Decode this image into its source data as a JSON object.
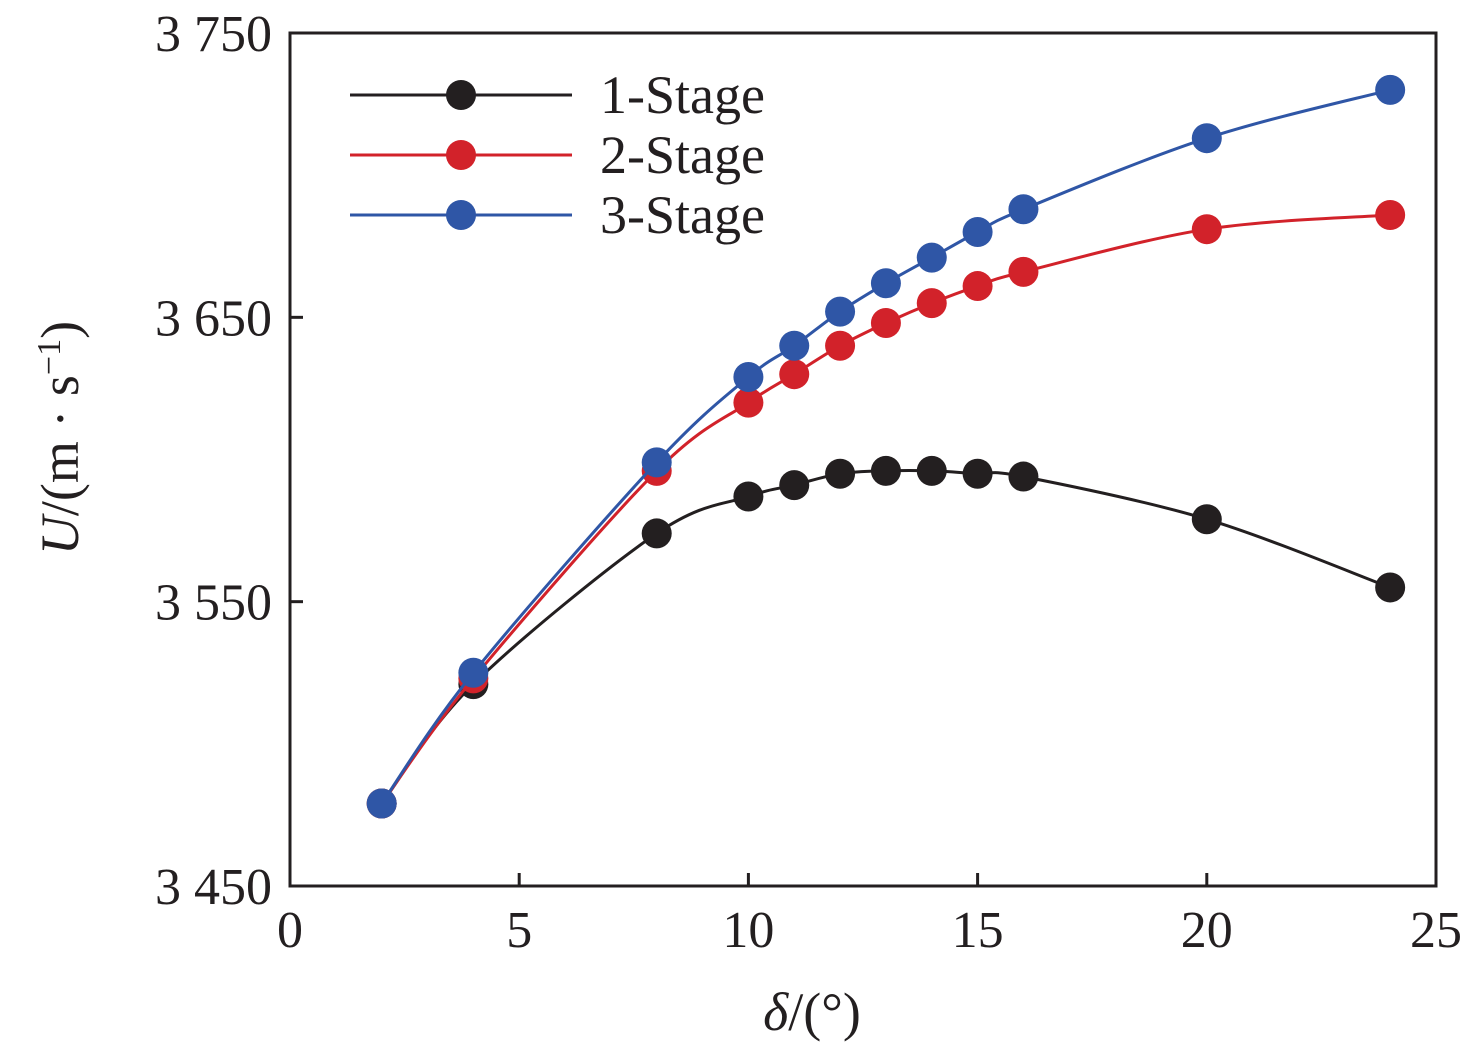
{
  "chart_data": {
    "type": "line",
    "xlabel": {
      "symbol": "δ",
      "unit": "/(°)"
    },
    "ylabel": {
      "symbol": "U",
      "unit_prefix": "/(m · s",
      "exponent": "−1",
      "unit_suffix": ")"
    },
    "xlim": [
      0,
      25
    ],
    "ylim": [
      3450,
      3750
    ],
    "xticks": [
      0,
      5,
      10,
      15,
      20,
      25
    ],
    "yticks": [
      3450,
      3550,
      3650,
      3750
    ],
    "xtick_labels": [
      "0",
      "5",
      "10",
      "15",
      "20",
      "25"
    ],
    "ytick_labels": [
      "3 450",
      "3 550",
      "3 650",
      "3 750"
    ],
    "grid": false,
    "legend_position": "top-left",
    "x": [
      2,
      4,
      8,
      10,
      11,
      12,
      13,
      14,
      15,
      16,
      20,
      24
    ],
    "series": [
      {
        "name": "1-Stage",
        "color": "#231f20",
        "values": [
          3479,
          3521,
          3574,
          3587,
          3591,
          3595,
          3596,
          3596,
          3595,
          3594,
          3579,
          3555
        ]
      },
      {
        "name": "2-Stage",
        "color": "#d2222a",
        "values": [
          3479,
          3523,
          3596,
          3620,
          3630,
          3640,
          3648,
          3655,
          3661,
          3666,
          3681,
          3686
        ]
      },
      {
        "name": "3-Stage",
        "color": "#2f56a6",
        "values": [
          3479,
          3525,
          3599,
          3629,
          3640,
          3652,
          3662,
          3671,
          3680,
          3688,
          3713,
          3730
        ]
      }
    ]
  }
}
